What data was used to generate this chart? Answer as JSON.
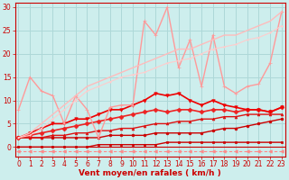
{
  "title": "",
  "xlabel": "Vent moyen/en rafales ( km/h )",
  "ylabel": "",
  "bg_color": "#cdeeed",
  "grid_color": "#aed8d8",
  "x": [
    0,
    1,
    2,
    3,
    4,
    5,
    6,
    7,
    8,
    9,
    10,
    11,
    12,
    13,
    14,
    15,
    16,
    17,
    18,
    19,
    20,
    21,
    22,
    23
  ],
  "lines": [
    {
      "y": [
        -1,
        -1,
        -1,
        -1,
        -1,
        -1,
        -1,
        -1,
        -1,
        -1,
        -1,
        -1,
        -1,
        -1,
        -1,
        -1,
        -1,
        -1,
        -1,
        -1,
        -1,
        -1,
        -1,
        -1
      ],
      "color": "#ff8888",
      "lw": 0.8,
      "marker": "<",
      "ms": 2.5,
      "dashes": [
        3,
        2
      ]
    },
    {
      "y": [
        0,
        0,
        0,
        0,
        0,
        0,
        0,
        0.5,
        0.5,
        0.5,
        0.5,
        0.5,
        0.5,
        1,
        1,
        1,
        1,
        1,
        1,
        1,
        1,
        1,
        1,
        1
      ],
      "color": "#cc0000",
      "lw": 1.0,
      "marker": "s",
      "ms": 2,
      "dashes": []
    },
    {
      "y": [
        2,
        2,
        2,
        2,
        2,
        2,
        2,
        2,
        2.5,
        2.5,
        2.5,
        2.5,
        3,
        3,
        3,
        3,
        3,
        3.5,
        4,
        4,
        4.5,
        5,
        5.5,
        6
      ],
      "color": "#cc0000",
      "lw": 1.0,
      "marker": "o",
      "ms": 2,
      "dashes": []
    },
    {
      "y": [
        2,
        2,
        2,
        2.5,
        2.5,
        3,
        3,
        3.5,
        3.5,
        4,
        4,
        4.5,
        5,
        5,
        5.5,
        5.5,
        6,
        6,
        6.5,
        6.5,
        7,
        7,
        7,
        7
      ],
      "color": "#dd1111",
      "lw": 1.0,
      "marker": "^",
      "ms": 2,
      "dashes": []
    },
    {
      "y": [
        2,
        2.5,
        3,
        3.5,
        4,
        4.5,
        5,
        5.5,
        6,
        6.5,
        7,
        7.5,
        8,
        7.5,
        8,
        8,
        7.5,
        8,
        8,
        7.5,
        8,
        8,
        7.5,
        8.5
      ],
      "color": "#ee2222",
      "lw": 1.2,
      "marker": "D",
      "ms": 2.5,
      "dashes": []
    },
    {
      "y": [
        2,
        3,
        4,
        5,
        5,
        6,
        6,
        7,
        8,
        8,
        9,
        10,
        11.5,
        11,
        11.5,
        10,
        9,
        10,
        9,
        8.5,
        8,
        8,
        7.5,
        8.5
      ],
      "color": "#ee0000",
      "lw": 1.2,
      "marker": "v",
      "ms": 2.5,
      "dashes": []
    },
    {
      "y": [
        8,
        15,
        12,
        11,
        5,
        11,
        8,
        2,
        8.5,
        9,
        9,
        27,
        24,
        30,
        17,
        23,
        13,
        24,
        13,
        11.5,
        13,
        13.5,
        18,
        29
      ],
      "color": "#ff9999",
      "lw": 1.0,
      "marker": "+",
      "ms": 3.5,
      "dashes": []
    },
    {
      "y": [
        2,
        3,
        5,
        7,
        9,
        11,
        13,
        14,
        15,
        16,
        17,
        18,
        19,
        20,
        21,
        21,
        22,
        23,
        24,
        24,
        25,
        26,
        27,
        29
      ],
      "color": "#ffbbbb",
      "lw": 1.0,
      "marker": null,
      "ms": 0,
      "dashes": []
    },
    {
      "y": [
        2,
        2.5,
        4,
        6,
        8,
        10,
        12,
        13,
        14,
        15,
        15.5,
        16,
        17,
        18,
        18.5,
        19,
        20,
        21,
        21.5,
        22,
        23,
        23.5,
        24.5,
        26
      ],
      "color": "#ffcccc",
      "lw": 0.8,
      "marker": ".",
      "ms": 2,
      "dashes": []
    }
  ],
  "xlim": [
    -0.3,
    23.3
  ],
  "ylim": [
    -2,
    31
  ],
  "yticks": [
    0,
    5,
    10,
    15,
    20,
    25,
    30
  ],
  "xticks": [
    0,
    1,
    2,
    3,
    4,
    5,
    6,
    7,
    8,
    9,
    10,
    11,
    12,
    13,
    14,
    15,
    16,
    17,
    18,
    19,
    20,
    21,
    22,
    23
  ],
  "tick_color": "#cc0000",
  "tick_fontsize": 5.5,
  "label_fontsize": 6.5,
  "label_color": "#cc0000"
}
